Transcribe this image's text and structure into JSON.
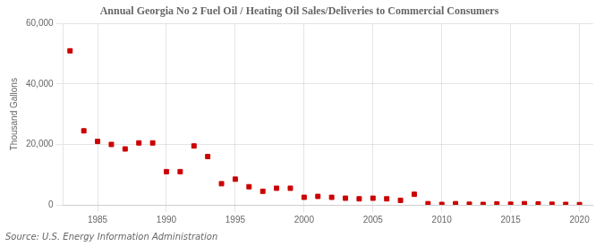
{
  "chart_data": {
    "type": "scatter",
    "title": "Annual Georgia No 2 Fuel Oil / Heating Oil Sales/Deliveries to Commercial Consumers",
    "ylabel": "Thousand Gallons",
    "annotations": [
      "Source: U.S. Energy Information Administration"
    ],
    "color": "#cc0000",
    "marker": "square",
    "grid": true,
    "xlim": [
      1982.5,
      2021
    ],
    "ylim": [
      0,
      60000
    ],
    "xticks": [
      1985,
      1990,
      1995,
      2000,
      2005,
      2010,
      2015,
      2020
    ],
    "yticks": [
      0,
      {
        "value": 20000,
        "label": "20,000"
      },
      {
        "value": 40000,
        "label": "40,000"
      },
      {
        "value": 60000,
        "label": "60,000"
      }
    ],
    "x": [
      1983,
      1984,
      1985,
      1986,
      1987,
      1988,
      1989,
      1990,
      1991,
      1992,
      1993,
      1994,
      1995,
      1996,
      1997,
      1998,
      1999,
      2000,
      2001,
      2002,
      2003,
      2004,
      2005,
      2006,
      2007,
      2008,
      2009,
      2010,
      2011,
      2012,
      2013,
      2014,
      2015,
      2016,
      2017,
      2018,
      2019,
      2020
    ],
    "values": [
      51000,
      24500,
      21000,
      20000,
      18500,
      20500,
      20500,
      11000,
      11000,
      19500,
      16000,
      7000,
      8500,
      6000,
      4500,
      5500,
      5500,
      2500,
      2800,
      2500,
      2200,
      2000,
      2200,
      2000,
      1500,
      3500,
      400,
      150,
      400,
      200,
      150,
      300,
      200,
      400,
      300,
      200,
      150,
      80
    ]
  }
}
